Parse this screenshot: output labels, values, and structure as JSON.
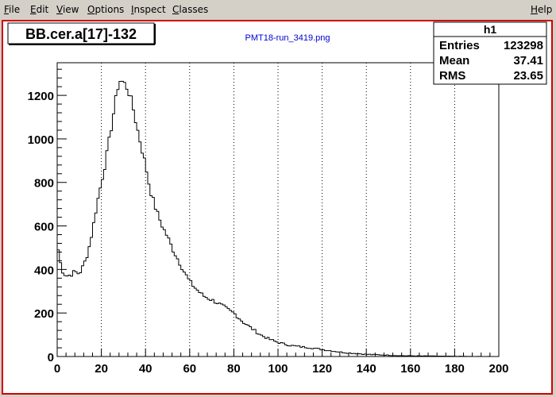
{
  "menu": {
    "items": [
      {
        "label": "File",
        "underline": "F",
        "rest": "ile"
      },
      {
        "label": "Edit",
        "underline": "E",
        "rest": "dit"
      },
      {
        "label": "View",
        "underline": "V",
        "rest": "iew"
      },
      {
        "label": "Options",
        "underline": "O",
        "rest": "ptions"
      },
      {
        "label": "Inspect",
        "underline": "I",
        "rest": "nspect"
      },
      {
        "label": "Classes",
        "underline": "C",
        "rest": "lasses"
      }
    ],
    "help": {
      "label": "Help",
      "underline": "H",
      "rest": "elp"
    }
  },
  "canvas": {
    "title": "BB.cer.a[17]-132",
    "subtitle": "PMT18-run_3419.png"
  },
  "stats": {
    "name": "h1",
    "rows": [
      {
        "label": "Entries",
        "value": "123298"
      },
      {
        "label": "Mean",
        "value": "37.41"
      },
      {
        "label": "RMS",
        "value": "23.65"
      }
    ]
  },
  "colors": {
    "frame_border": "#d40000",
    "subtitle": "#0000cc",
    "histogram_line": "#000000"
  },
  "chart_data": {
    "type": "histogram-step",
    "title": "BB.cer.a[17]-132",
    "xlim": [
      0,
      200
    ],
    "ylim": [
      0,
      1350
    ],
    "bin_width": 1,
    "x_ticks": [
      0,
      20,
      40,
      60,
      80,
      100,
      120,
      140,
      160,
      180,
      200
    ],
    "y_ticks": [
      0,
      200,
      400,
      600,
      800,
      1000,
      1200
    ],
    "grid": "vertical-dotted",
    "points": [
      [
        0,
        520
      ],
      [
        2,
        400
      ],
      [
        4,
        370
      ],
      [
        6,
        375
      ],
      [
        8,
        390
      ],
      [
        10,
        380
      ],
      [
        12,
        420
      ],
      [
        14,
        480
      ],
      [
        16,
        580
      ],
      [
        18,
        700
      ],
      [
        20,
        800
      ],
      [
        22,
        900
      ],
      [
        24,
        1020
      ],
      [
        26,
        1150
      ],
      [
        28,
        1270
      ],
      [
        30,
        1260
      ],
      [
        32,
        1230
      ],
      [
        34,
        1160
      ],
      [
        36,
        1060
      ],
      [
        38,
        970
      ],
      [
        40,
        880
      ],
      [
        42,
        770
      ],
      [
        44,
        700
      ],
      [
        46,
        640
      ],
      [
        48,
        590
      ],
      [
        50,
        550
      ],
      [
        52,
        500
      ],
      [
        54,
        460
      ],
      [
        56,
        420
      ],
      [
        58,
        380
      ],
      [
        60,
        345
      ],
      [
        62,
        320
      ],
      [
        64,
        300
      ],
      [
        66,
        280
      ],
      [
        68,
        270
      ],
      [
        70,
        260
      ],
      [
        72,
        250
      ],
      [
        74,
        238
      ],
      [
        76,
        225
      ],
      [
        78,
        210
      ],
      [
        80,
        200
      ],
      [
        82,
        180
      ],
      [
        84,
        160
      ],
      [
        86,
        145
      ],
      [
        88,
        130
      ],
      [
        90,
        115
      ],
      [
        92,
        100
      ],
      [
        94,
        90
      ],
      [
        96,
        80
      ],
      [
        98,
        72
      ],
      [
        100,
        65
      ],
      [
        105,
        52
      ],
      [
        110,
        45
      ],
      [
        115,
        40
      ],
      [
        120,
        32
      ],
      [
        125,
        25
      ],
      [
        130,
        18
      ],
      [
        135,
        14
      ],
      [
        140,
        10
      ],
      [
        145,
        8
      ],
      [
        150,
        6
      ],
      [
        155,
        4
      ],
      [
        160,
        3
      ],
      [
        170,
        2
      ],
      [
        180,
        1
      ],
      [
        190,
        0
      ],
      [
        200,
        0
      ]
    ]
  }
}
